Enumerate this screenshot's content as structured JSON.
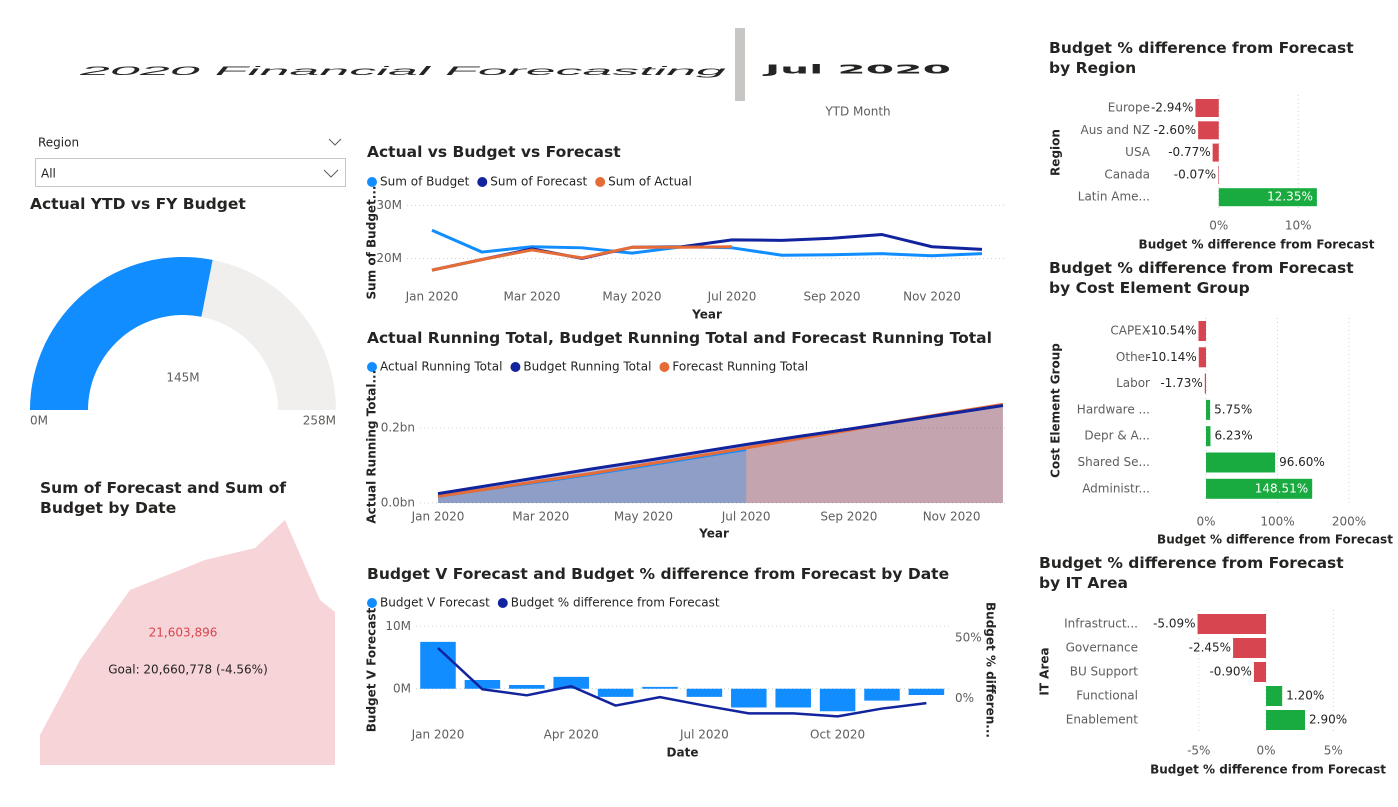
{
  "header": {
    "title": "2020 Financial Forecasting",
    "month": "Jul 2020",
    "month_label": "YTD Month"
  },
  "slicer": {
    "label": "Region",
    "value": "All"
  },
  "gauge": {
    "title": "Actual YTD vs FY Budget",
    "value": {
      "value": 145,
      "label": "145M"
    },
    "min": {
      "value": 0,
      "label": "0M"
    },
    "max": {
      "value": 258,
      "label": "258M"
    },
    "color": "#118dff",
    "track_color": "#f0efee"
  },
  "kpi": {
    "title": "Sum of Forecast and Sum of Budget by Date",
    "value": "21,603,896",
    "goal": "Goal: 20,660,778 (-4.56%)",
    "color": "#d64550"
  },
  "line_chart": {
    "type": "line",
    "title": "Actual vs Budget vs Forecast",
    "x_label": "Year",
    "y_label": "Sum of Budget...",
    "categories": [
      "Jan 2020",
      null,
      "Mar 2020",
      null,
      "May 2020",
      null,
      "Jul 2020",
      null,
      "Sep 2020",
      null,
      "Nov 2020",
      null
    ],
    "series": [
      {
        "name": "Sum of Budget",
        "color": "#118dff",
        "values": [
          25.3,
          21.2,
          22.2,
          22.0,
          21.0,
          22.2,
          22.0,
          20.6,
          20.7,
          20.9,
          20.5,
          20.9
        ]
      },
      {
        "name": "Sum of Forecast",
        "color": "#12239e",
        "values": [
          17.8,
          19.8,
          21.8,
          20.0,
          22.1,
          22.2,
          23.5,
          23.4,
          23.8,
          24.5,
          22.2,
          21.7
        ]
      },
      {
        "name": "Sum of Actual",
        "color": "#e66c37",
        "values": [
          17.8,
          19.8,
          21.6,
          20.1,
          22.1,
          22.1,
          22.2,
          null,
          null,
          null,
          null,
          null
        ]
      }
    ],
    "ylim": [
      15,
      31
    ],
    "yticks": [
      {
        "value": 20,
        "label": "20M"
      },
      {
        "value": 30,
        "label": "30M"
      }
    ],
    "grid": true
  },
  "area_chart": {
    "type": "area",
    "title": "Actual Running Total, Budget Running Total and Forecast Running Total",
    "x_label": "Year",
    "y_label": "Actual Running Total...",
    "categories": [
      "Jan 2020",
      null,
      "Mar 2020",
      null,
      "May 2020",
      null,
      "Jul 2020",
      null,
      "Sep 2020",
      null,
      "Nov 2020",
      null
    ],
    "series": [
      {
        "name": "Actual Running Total",
        "color": "#118dff",
        "values": [
          0.018,
          0.038,
          0.057,
          0.077,
          0.099,
          0.121,
          0.143,
          null,
          null,
          null,
          null,
          null
        ]
      },
      {
        "name": "Budget Running Total",
        "color": "#12239e",
        "values": [
          0.025,
          0.047,
          0.069,
          0.091,
          0.112,
          0.134,
          0.156,
          0.177,
          0.197,
          0.218,
          0.239,
          0.26
        ]
      },
      {
        "name": "Forecast Running Total",
        "color": "#e66c37",
        "values": [
          0.018,
          0.038,
          0.059,
          0.079,
          0.102,
          0.124,
          0.147,
          0.171,
          0.194,
          0.219,
          0.241,
          0.263
        ]
      }
    ],
    "ylim": [
      0,
      0.3
    ],
    "yticks": [
      {
        "value": 0,
        "label": "0.0bn"
      },
      {
        "value": 0.2,
        "label": "0.2bn"
      }
    ],
    "grid": true
  },
  "combo_chart": {
    "type": "combo",
    "title": "Budget V Forecast and Budget % difference from Forecast by Date",
    "x_label": "Date",
    "y_label": "Budget V Forecast",
    "y2_label": "Budget % differen...",
    "categories": [
      "Jan 2020",
      null,
      null,
      "Apr 2020",
      null,
      null,
      "Jul 2020",
      null,
      null,
      "Oct 2020",
      null,
      null
    ],
    "series": [
      {
        "name": "Budget V Forecast",
        "color": "#118dff",
        "values": [
          7.5,
          1.4,
          0.6,
          1.9,
          -1.3,
          0.3,
          -1.3,
          -3.0,
          -3.0,
          -3.6,
          -1.9,
          -1.0
        ]
      },
      {
        "name": "Budget % difference from Forecast",
        "color": "#12239e",
        "axis": "y2",
        "values": [
          41.7,
          7.5,
          2.5,
          10.0,
          -6.0,
          1.0,
          -6.0,
          -12.5,
          -12.5,
          -15.0,
          -8.5,
          -4.0
        ]
      }
    ],
    "ylim": [
      -5,
      11
    ],
    "yticks": [
      {
        "value": 0,
        "label": "0M"
      },
      {
        "value": 10,
        "label": "10M"
      }
    ],
    "y2lim": [
      -18,
      65
    ],
    "y2ticks": [
      {
        "value": 0,
        "label": "0%"
      },
      {
        "value": 50,
        "label": "50%"
      }
    ],
    "grid": true
  },
  "region_chart": {
    "type": "hbar",
    "title": "Budget % difference from Forecast by Region",
    "y_label": "Region",
    "x_label": "Budget % difference from Forecast",
    "categories": [
      "Europe",
      "Aus and NZ",
      "USA",
      "Canada",
      "Latin Ame..."
    ],
    "values": [
      -2.94,
      -2.6,
      -0.77,
      -0.07,
      12.35
    ],
    "value_labels": [
      "-2.94%",
      "-2.60%",
      "-0.77%",
      "-0.07%",
      "12.35%"
    ],
    "xlim": [
      -4,
      13.5
    ],
    "xticks": [
      {
        "value": 0,
        "label": "0%"
      },
      {
        "value": 10,
        "label": "10%"
      }
    ],
    "positive_color": "#1aab40",
    "negative_color": "#d64550",
    "grid": true
  },
  "cost_chart": {
    "type": "hbar",
    "title": "Budget % difference from Forecast by Cost Element Group",
    "y_label": "Cost Element Group",
    "x_label": "Budget % difference from Forecast",
    "categories": [
      "CAPEX",
      "Other",
      "Labor",
      "Hardware ...",
      "Depr & A...",
      "Shared Se...",
      "Administr..."
    ],
    "values": [
      -10.54,
      -10.14,
      -1.73,
      5.75,
      6.23,
      96.6,
      148.51
    ],
    "value_labels": [
      "-10.54%",
      "-10.14%",
      "-1.73%",
      "5.75%",
      "6.23%",
      "96.60%",
      "148.51%"
    ],
    "xlim": [
      -15,
      208
    ],
    "xticks": [
      {
        "value": 0,
        "label": "0%"
      },
      {
        "value": 100,
        "label": "100%"
      },
      {
        "value": 200,
        "label": "200%"
      }
    ],
    "positive_color": "#1aab40",
    "negative_color": "#d64550",
    "grid": true
  },
  "it_chart": {
    "type": "hbar",
    "title": "Budget % difference from Forecast by IT Area",
    "y_label": "IT Area",
    "x_label": "Budget % difference from Forecast",
    "categories": [
      "Infrastruct...",
      "Governance",
      "BU Support",
      "Functional",
      "Enablement"
    ],
    "values": [
      -5.09,
      -2.45,
      -0.9,
      1.2,
      2.9
    ],
    "value_labels": [
      "-5.09%",
      "-2.45%",
      "-0.90%",
      "1.20%",
      "2.90%"
    ],
    "xlim": [
      -5.6,
      5.9
    ],
    "xticks": [
      {
        "value": -5,
        "label": "-5%"
      },
      {
        "value": 0,
        "label": "0%"
      },
      {
        "value": 5,
        "label": "5%"
      }
    ],
    "positive_color": "#1aab40",
    "negative_color": "#d64550",
    "grid": true
  }
}
